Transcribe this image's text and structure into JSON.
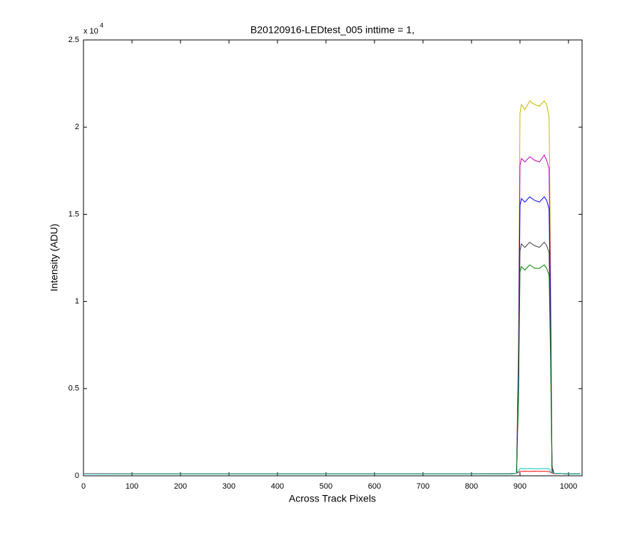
{
  "chart_data": {
    "type": "line",
    "title": "B20120916-LEDtest_005 inttime = 1,",
    "xlabel": "Across Track Pixels",
    "ylabel": "Intensity (ADU)",
    "y_multiplier": "x 10",
    "y_multiplier_exponent": "4",
    "x": [
      0,
      100,
      200,
      300,
      400,
      500,
      600,
      700,
      800,
      880,
      893,
      897,
      900,
      903,
      910,
      920,
      930,
      940,
      950,
      955,
      960,
      963,
      966,
      970,
      1000,
      1024
    ],
    "series": [
      {
        "color": "#c8b400",
        "values": [
          100,
          100,
          100,
          100,
          100,
          100,
          100,
          100,
          100,
          100,
          150,
          8000,
          20800,
          21300,
          21000,
          21500,
          21300,
          21200,
          21500,
          21300,
          20600,
          12000,
          600,
          150,
          100,
          100
        ]
      },
      {
        "color": "#bf00bf",
        "values": [
          100,
          100,
          100,
          100,
          100,
          100,
          100,
          100,
          100,
          100,
          150,
          7000,
          17800,
          18200,
          18000,
          18300,
          18100,
          18000,
          18400,
          18100,
          17600,
          10000,
          500,
          150,
          100,
          100
        ]
      },
      {
        "color": "#0000ff",
        "values": [
          100,
          100,
          100,
          100,
          100,
          100,
          100,
          100,
          100,
          100,
          150,
          6000,
          15500,
          15900,
          15700,
          16000,
          15800,
          15700,
          16000,
          15800,
          15300,
          9000,
          400,
          150,
          100,
          100
        ]
      },
      {
        "color": "#404040",
        "values": [
          100,
          100,
          100,
          100,
          100,
          100,
          100,
          100,
          100,
          100,
          150,
          5000,
          12900,
          13300,
          13100,
          13400,
          13200,
          13100,
          13400,
          13200,
          12800,
          7500,
          350,
          150,
          100,
          100
        ]
      },
      {
        "color": "#008000",
        "values": [
          100,
          100,
          100,
          100,
          100,
          100,
          100,
          100,
          100,
          100,
          150,
          4500,
          11700,
          12000,
          11800,
          12100,
          11900,
          11900,
          12100,
          11900,
          11500,
          6800,
          300,
          150,
          100,
          100
        ]
      },
      {
        "color": "#ff0000",
        "values": [
          120,
          120,
          120,
          120,
          120,
          120,
          120,
          120,
          120,
          130,
          150,
          200,
          250,
          250,
          260,
          250,
          260,
          250,
          260,
          250,
          240,
          200,
          150,
          130,
          120,
          120
        ]
      },
      {
        "color": "#00bfbf",
        "values": [
          100,
          110,
          110,
          110,
          110,
          110,
          110,
          110,
          110,
          120,
          150,
          300,
          400,
          420,
          400,
          420,
          410,
          400,
          420,
          410,
          400,
          300,
          200,
          150,
          120,
          110
        ]
      }
    ],
    "xlim": [
      0,
      1028
    ],
    "ylim": [
      0,
      25000
    ],
    "xticks": [
      0,
      100,
      200,
      300,
      400,
      500,
      600,
      700,
      800,
      900,
      1000
    ],
    "yticks": [
      0,
      {
        "value": 5000,
        "label": "0.5"
      },
      {
        "value": 10000,
        "label": "1"
      },
      {
        "value": 15000,
        "label": "1.5"
      },
      {
        "value": 20000,
        "label": "2"
      },
      {
        "value": 25000,
        "label": "2.5"
      }
    ],
    "grid": false
  }
}
